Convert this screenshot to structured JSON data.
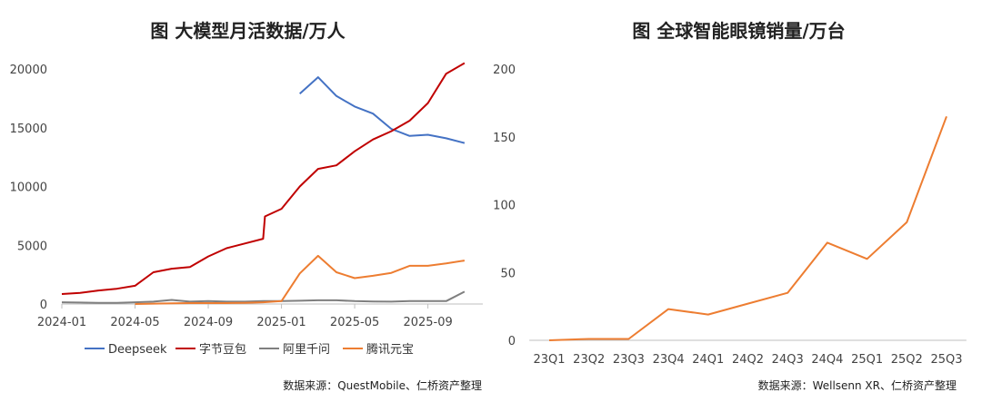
{
  "left_chart": {
    "title": "图  大模型月活数据/万人",
    "source": "数据来源：QuestMobile、仁桥资产整理",
    "chart_data": {
      "type": "line",
      "title": "图  大模型月活数据/万人",
      "xlabel": "",
      "ylabel": "",
      "ylim": [
        0,
        20000
      ],
      "y_ticks": [
        0,
        5000,
        10000,
        15000,
        20000
      ],
      "x_ticks": [
        "2024-01",
        "2024-05",
        "2024-09",
        "2025-01",
        "2025-05",
        "2025-09"
      ],
      "xlim": [
        "2024-01",
        "2025-12"
      ],
      "legend_position": "bottom",
      "series": [
        {
          "name": "Deepseek",
          "color": "#4472C4",
          "points": [
            [
              "2025-02",
              17900
            ],
            [
              "2025-03",
              19300
            ],
            [
              "2025-04",
              17700
            ],
            [
              "2025-05",
              16800
            ],
            [
              "2025-06",
              16200
            ],
            [
              "2025-07",
              14900
            ],
            [
              "2025-08",
              14300
            ],
            [
              "2025-09",
              14400
            ],
            [
              "2025-10",
              14100
            ],
            [
              "2025-11",
              13700
            ]
          ]
        },
        {
          "name": "字节豆包",
          "color": "#C00000",
          "points": [
            [
              "2024-01",
              850
            ],
            [
              "2024-02",
              950
            ],
            [
              "2024-03",
              1150
            ],
            [
              "2024-04",
              1300
            ],
            [
              "2024-05",
              1550
            ],
            [
              "2024-06",
              2700
            ],
            [
              "2024-07",
              3000
            ],
            [
              "2024-08",
              3150
            ],
            [
              "2024-09",
              4050
            ],
            [
              "2024-10",
              4750
            ],
            [
              "2024-11",
              5150
            ],
            [
              "2024-12",
              5550
            ],
            [
              "2024-12",
              7450
            ],
            [
              "2025-01",
              8100
            ],
            [
              "2025-02",
              10000
            ],
            [
              "2025-03",
              11500
            ],
            [
              "2025-04",
              11800
            ],
            [
              "2025-05",
              13000
            ],
            [
              "2025-06",
              14000
            ],
            [
              "2025-07",
              14700
            ],
            [
              "2025-08",
              15600
            ],
            [
              "2025-09",
              17100
            ],
            [
              "2025-10",
              19600
            ],
            [
              "2025-11",
              20500
            ]
          ]
        },
        {
          "name": "阿里千问",
          "color": "#7F7F7F",
          "points": [
            [
              "2024-01",
              150
            ],
            [
              "2024-02",
              120
            ],
            [
              "2024-03",
              100
            ],
            [
              "2024-04",
              100
            ],
            [
              "2024-05",
              150
            ],
            [
              "2024-06",
              200
            ],
            [
              "2024-07",
              350
            ],
            [
              "2024-08",
              200
            ],
            [
              "2024-09",
              250
            ],
            [
              "2024-10",
              200
            ],
            [
              "2024-11",
              200
            ],
            [
              "2024-12",
              250
            ],
            [
              "2025-01",
              250
            ],
            [
              "2025-02",
              280
            ],
            [
              "2025-03",
              320
            ],
            [
              "2025-04",
              320
            ],
            [
              "2025-05",
              250
            ],
            [
              "2025-06",
              220
            ],
            [
              "2025-07",
              200
            ],
            [
              "2025-08",
              250
            ],
            [
              "2025-09",
              250
            ],
            [
              "2025-10",
              250
            ],
            [
              "2025-11",
              1050
            ]
          ]
        },
        {
          "name": "腾讯元宝",
          "color": "#ED7D31",
          "points": [
            [
              "2024-05",
              0
            ],
            [
              "2024-06",
              30
            ],
            [
              "2024-07",
              60
            ],
            [
              "2024-08",
              80
            ],
            [
              "2024-09",
              80
            ],
            [
              "2024-10",
              80
            ],
            [
              "2024-11",
              100
            ],
            [
              "2024-12",
              150
            ],
            [
              "2025-01",
              250
            ],
            [
              "2025-02",
              2600
            ],
            [
              "2025-03",
              4100
            ],
            [
              "2025-04",
              2700
            ],
            [
              "2025-05",
              2200
            ],
            [
              "2025-06",
              2400
            ],
            [
              "2025-07",
              2650
            ],
            [
              "2025-08",
              3250
            ],
            [
              "2025-09",
              3250
            ],
            [
              "2025-10",
              3450
            ],
            [
              "2025-11",
              3700
            ]
          ]
        }
      ]
    }
  },
  "right_chart": {
    "title": "图  全球智能眼镜销量/万台",
    "source": "数据来源：Wellsenn XR、仁桥资产整理",
    "chart_data": {
      "type": "line",
      "title": "图  全球智能眼镜销量/万台",
      "xlabel": "",
      "ylabel": "",
      "ylim": [
        0,
        200
      ],
      "y_ticks": [
        0,
        50,
        100,
        150,
        200
      ],
      "grid": false,
      "categories": [
        "23Q1",
        "23Q2",
        "23Q3",
        "23Q4",
        "24Q1",
        "24Q2",
        "24Q3",
        "24Q4",
        "25Q1",
        "25Q2",
        "25Q3"
      ],
      "series": [
        {
          "color": "#ED7D31",
          "values": [
            0,
            1,
            1,
            23,
            19,
            27,
            35,
            72,
            60,
            87,
            165
          ]
        }
      ]
    }
  }
}
